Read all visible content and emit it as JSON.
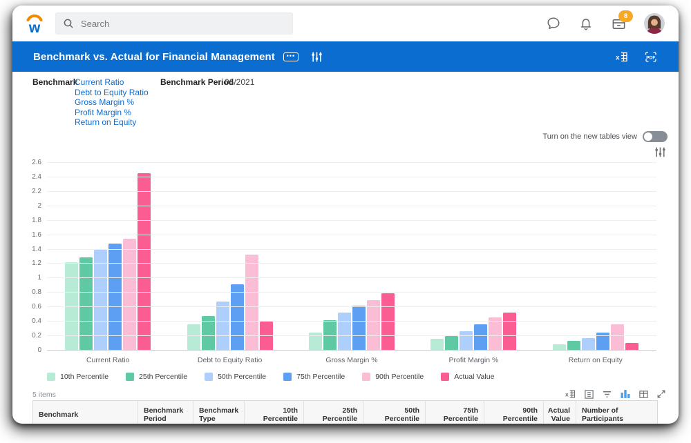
{
  "topbar": {
    "search_placeholder": "Search",
    "inbox_badge": "8"
  },
  "header": {
    "title": "Benchmark vs. Actual for Financial Management"
  },
  "filters": {
    "benchmark_label": "Benchmark",
    "benchmark_links": [
      "Current Ratio",
      "Debt to Equity Ratio",
      "Gross Margin %",
      "Profit Margin %",
      "Return on Equity"
    ],
    "period_label": "Benchmark Period",
    "period_value": "06/2021"
  },
  "view_toggle": {
    "label": "Turn on the new tables view",
    "state": "off"
  },
  "chart_data": {
    "type": "bar",
    "title": "",
    "xlabel": "",
    "ylabel": "",
    "ylim": [
      0,
      2.6
    ],
    "ytick_step": 0.2,
    "grid": true,
    "legend_position": "bottom",
    "categories": [
      "Current Ratio",
      "Debt to Equity Ratio",
      "Gross Margin %",
      "Profit Margin %",
      "Return on Equity"
    ],
    "series": [
      {
        "name": "10th Percentile",
        "color": "#b7ebd5",
        "values": [
          1.22,
          0.36,
          0.25,
          0.16,
          0.09
        ]
      },
      {
        "name": "25th Percentile",
        "color": "#5fc9a3",
        "values": [
          1.29,
          0.48,
          0.42,
          0.2,
          0.13
        ]
      },
      {
        "name": "50th Percentile",
        "color": "#aecffb",
        "values": [
          1.4,
          0.68,
          0.53,
          0.27,
          0.17
        ]
      },
      {
        "name": "75th Percentile",
        "color": "#5d9ff3",
        "values": [
          1.48,
          0.92,
          0.62,
          0.36,
          0.25
        ]
      },
      {
        "name": "90th Percentile",
        "color": "#fbbcd5",
        "values": [
          1.55,
          1.33,
          0.7,
          0.46,
          0.36
        ]
      },
      {
        "name": "Actual Value",
        "color": "#fb5d92",
        "values": [
          2.46,
          0.4,
          0.79,
          0.53,
          0.11
        ]
      }
    ]
  },
  "table": {
    "items_count": "5 items",
    "columns": [
      "Benchmark",
      "Benchmark Period",
      "Benchmark Type",
      "10th Percentile",
      "25th Percentile",
      "50th Percentile",
      "75th Percentile",
      "90th Percentile",
      "Actual Value",
      "Number of Participants"
    ]
  },
  "colors": {
    "header_blue": "#0b6dd0",
    "link_blue": "#0b6ed3",
    "badge_orange": "#f9a825",
    "toggle_off_track": "#878e95"
  },
  "icons": {
    "workday-logo": "blue lowercase w with orange arc",
    "search-icon": "magnifier",
    "chat-icon": "speech bubble outline",
    "notifications-icon": "bell outline",
    "inbox-icon": "tray with orange count badge",
    "related-actions-icon": "boxed ellipsis",
    "chart-config-icon": "vertical sliders",
    "export-excel-icon": "x with grid",
    "export-pdf-icon": "PDF boxed",
    "grid-view-icon": "table grid",
    "filter-icon": "funnel lines",
    "chart-view-icon": "bar chart (active blue)",
    "columns-icon": "table columns",
    "expand-icon": "diagonal resize arrows"
  }
}
